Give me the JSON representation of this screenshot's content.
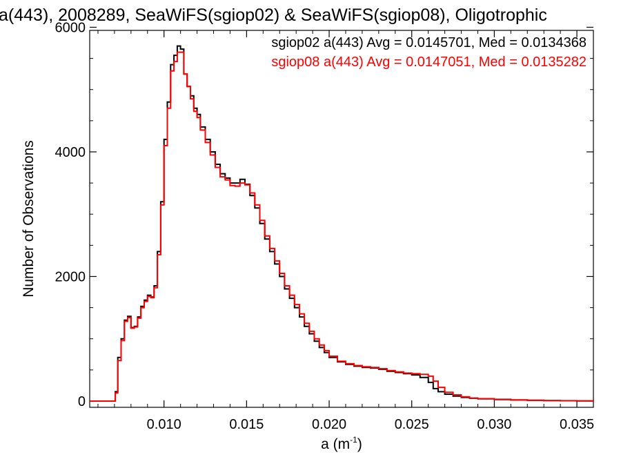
{
  "chart_data": {
    "type": "line",
    "title": "a(443), 2008289, SeaWiFS(sgiop02) & SeaWiFS(sgiop08), Oligotrophic",
    "xlabel": "a (m",
    "xlabel_sup": "-1",
    "xlabel_close": ")",
    "ylabel": "Number of Observations",
    "xlim": [
      0.0055,
      0.036
    ],
    "ylim": [
      -100,
      5950
    ],
    "x_ticks": [
      0.01,
      0.015,
      0.02,
      0.025,
      0.03,
      0.035
    ],
    "x_tick_labels": [
      "0.010",
      "0.015",
      "0.020",
      "0.025",
      "0.030",
      "0.035"
    ],
    "y_ticks": [
      0,
      2000,
      4000,
      6000
    ],
    "y_tick_labels": [
      "0",
      "2000",
      "4000",
      "6000"
    ],
    "grid": false,
    "legend_position": "top-right",
    "legend": [
      "sgiop02 a(443) Avg = 0.0145701, Med = 0.0134368",
      "sgiop08 a(443) Avg = 0.0147051, Med = 0.0135282"
    ],
    "series": [
      {
        "name": "sgiop02",
        "color": "#000000",
        "x": [
          0.0055,
          0.0065,
          0.007,
          0.00705,
          0.0072,
          0.0074,
          0.0076,
          0.0078,
          0.008,
          0.0082,
          0.0084,
          0.0086,
          0.0088,
          0.009,
          0.0092,
          0.0094,
          0.0096,
          0.0098,
          0.01,
          0.0102,
          0.0104,
          0.0106,
          0.0108,
          0.011,
          0.0112,
          0.0114,
          0.0116,
          0.0118,
          0.012,
          0.0122,
          0.0125,
          0.0128,
          0.0131,
          0.0134,
          0.0137,
          0.014,
          0.0143,
          0.0146,
          0.0149,
          0.0152,
          0.0155,
          0.0158,
          0.0161,
          0.0164,
          0.0167,
          0.017,
          0.0173,
          0.0176,
          0.0179,
          0.0182,
          0.0185,
          0.0188,
          0.0191,
          0.0194,
          0.0197,
          0.02,
          0.0205,
          0.021,
          0.0215,
          0.022,
          0.0225,
          0.023,
          0.0235,
          0.024,
          0.0245,
          0.025,
          0.0255,
          0.026,
          0.0263,
          0.0266,
          0.027,
          0.0275,
          0.028,
          0.0285,
          0.029,
          0.03,
          0.031,
          0.032,
          0.033,
          0.034,
          0.035,
          0.036
        ],
        "y": [
          0,
          0,
          0,
          150,
          700,
          1000,
          1300,
          1360,
          1180,
          1200,
          1350,
          1520,
          1620,
          1700,
          1670,
          1850,
          2400,
          3200,
          4200,
          4800,
          5400,
          5550,
          5700,
          5650,
          5250,
          5050,
          4900,
          4700,
          4600,
          4400,
          4200,
          4000,
          3800,
          3650,
          3580,
          3500,
          3500,
          3560,
          3480,
          3300,
          3100,
          2850,
          2600,
          2400,
          2200,
          2000,
          1800,
          1650,
          1500,
          1350,
          1200,
          1080,
          960,
          860,
          780,
          700,
          630,
          590,
          560,
          540,
          530,
          510,
          480,
          460,
          440,
          420,
          380,
          300,
          200,
          150,
          110,
          80,
          60,
          45,
          35,
          25,
          18,
          12,
          8,
          5,
          3,
          2
        ]
      },
      {
        "name": "sgiop08",
        "color": "#ff0000",
        "x": [
          0.0055,
          0.0065,
          0.007,
          0.00705,
          0.0072,
          0.0074,
          0.0076,
          0.0078,
          0.008,
          0.0082,
          0.0084,
          0.0086,
          0.0088,
          0.009,
          0.0092,
          0.0094,
          0.0096,
          0.0098,
          0.01,
          0.0102,
          0.0104,
          0.0106,
          0.0108,
          0.011,
          0.0112,
          0.0114,
          0.0116,
          0.0118,
          0.012,
          0.0122,
          0.0125,
          0.0128,
          0.0131,
          0.0134,
          0.0137,
          0.014,
          0.0143,
          0.0146,
          0.0149,
          0.0152,
          0.0155,
          0.0158,
          0.0161,
          0.0164,
          0.0167,
          0.017,
          0.0173,
          0.0176,
          0.0179,
          0.0182,
          0.0185,
          0.0188,
          0.0191,
          0.0194,
          0.0197,
          0.02,
          0.0205,
          0.021,
          0.0215,
          0.022,
          0.0225,
          0.023,
          0.0235,
          0.024,
          0.0245,
          0.025,
          0.0255,
          0.026,
          0.0263,
          0.0266,
          0.027,
          0.0275,
          0.028,
          0.0285,
          0.029,
          0.03,
          0.031,
          0.032,
          0.033,
          0.034,
          0.035,
          0.036
        ],
        "y": [
          0,
          0,
          0,
          130,
          650,
          970,
          1280,
          1340,
          1170,
          1190,
          1330,
          1500,
          1600,
          1680,
          1660,
          1820,
          2350,
          3150,
          4100,
          4700,
          5300,
          5450,
          5600,
          5600,
          5250,
          5050,
          4850,
          4650,
          4550,
          4350,
          4150,
          3950,
          3750,
          3600,
          3550,
          3460,
          3450,
          3500,
          3470,
          3340,
          3150,
          2900,
          2650,
          2450,
          2250,
          2050,
          1850,
          1700,
          1550,
          1400,
          1250,
          1120,
          1000,
          900,
          810,
          720,
          640,
          600,
          570,
          550,
          540,
          520,
          490,
          470,
          450,
          440,
          430,
          400,
          320,
          220,
          140,
          100,
          70,
          50,
          38,
          28,
          20,
          14,
          9,
          6,
          4,
          3
        ]
      }
    ]
  }
}
